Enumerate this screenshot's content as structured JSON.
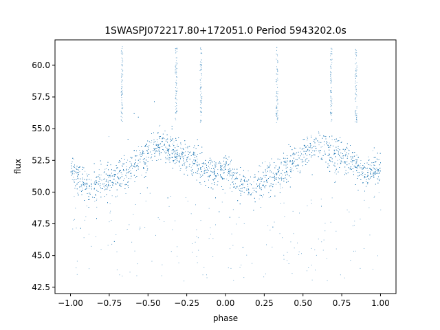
{
  "chart_data": {
    "type": "scatter",
    "title": "1SWASPJ072217.80+172051.0 Period 5943202.0s",
    "xlabel": "phase",
    "ylabel": "flux",
    "xlim": [
      -1.1,
      1.1
    ],
    "ylim": [
      42.0,
      62.0
    ],
    "xticks": [
      -1.0,
      -0.75,
      -0.5,
      -0.25,
      0.0,
      0.25,
      0.5,
      0.75,
      1.0
    ],
    "xtick_labels": [
      "−1.00",
      "−0.75",
      "−0.50",
      "−0.25",
      "0.00",
      "0.25",
      "0.50",
      "0.75",
      "1.00"
    ],
    "yticks": [
      42.5,
      45.0,
      47.5,
      50.0,
      52.5,
      55.0,
      57.5,
      60.0
    ],
    "ytick_labels": [
      "42.5",
      "45.0",
      "47.5",
      "50.0",
      "52.5",
      "55.0",
      "57.5",
      "60.0"
    ],
    "grid": false,
    "marker_color": "#1f77b4",
    "phase_range": [
      -1.0,
      1.0
    ],
    "light_curve_model": {
      "description_points_phase": [
        0.0,
        0.1,
        0.15,
        0.25,
        0.35,
        0.45,
        0.55,
        0.6,
        0.7,
        0.8,
        0.9,
        1.0
      ],
      "mean_flux": [
        51.8,
        50.6,
        50.4,
        51.0,
        51.6,
        52.6,
        53.6,
        53.7,
        53.0,
        52.5,
        51.5,
        51.8
      ]
    },
    "outlier_columns_phase": [
      -0.67,
      -0.32,
      -0.16,
      0.33,
      0.68,
      0.84
    ]
  }
}
